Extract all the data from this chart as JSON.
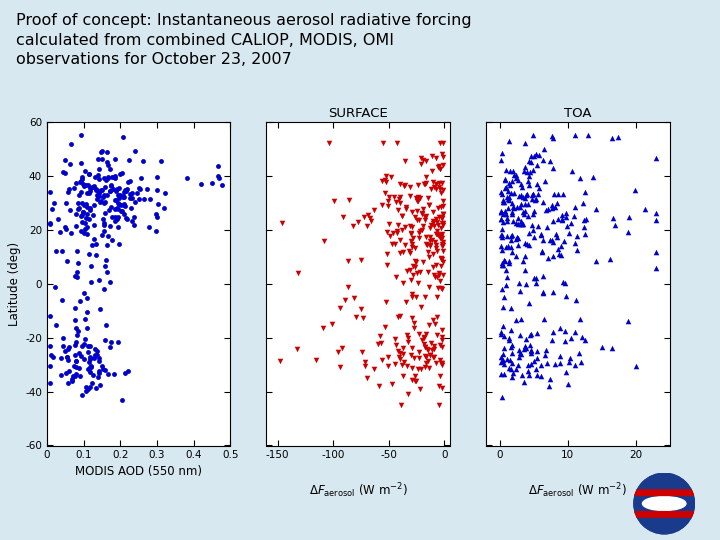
{
  "title": "Proof of concept: Instantaneous aerosol radiative forcing\ncalculated from combined CALIOP, MODIS, OMI\nobservations for October 23, 2007",
  "title_fontsize": 11.5,
  "bg_color": "#d8e8f0",
  "panel_bg": "#ffffff",
  "subplot1": {
    "xlabel": "MODIS AOD (550 nm)",
    "ylabel": "Latitude (deg)",
    "xlim": [
      0,
      0.5
    ],
    "ylim": [
      -60,
      60
    ],
    "xticks": [
      0,
      0.1,
      0.2,
      0.3,
      0.4,
      0.5
    ],
    "yticks": [
      -60,
      -40,
      -20,
      0,
      20,
      40,
      60
    ],
    "color": "#0000cc",
    "marker": "o",
    "markersize": 3.5
  },
  "subplot2": {
    "title": "SURFACE",
    "xlim": [
      -160,
      5
    ],
    "ylim": [
      -60,
      60
    ],
    "xticks": [
      -150,
      -100,
      -50,
      0
    ],
    "yticks": [
      -60,
      -40,
      -20,
      0,
      20,
      40,
      60
    ],
    "color": "#cc0000",
    "marker": "v",
    "markersize": 4
  },
  "subplot3": {
    "title": "TOA",
    "xlim": [
      -2,
      25
    ],
    "ylim": [
      -60,
      60
    ],
    "xticks": [
      0,
      10,
      20
    ],
    "yticks": [
      -60,
      -40,
      -20,
      0,
      20,
      40,
      60
    ],
    "color": "#0000cc",
    "marker": "^",
    "markersize": 4
  }
}
